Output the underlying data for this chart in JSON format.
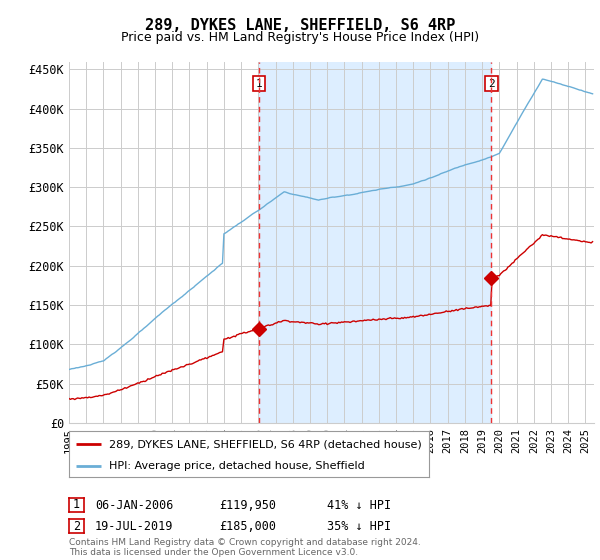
{
  "title": "289, DYKES LANE, SHEFFIELD, S6 4RP",
  "subtitle": "Price paid vs. HM Land Registry's House Price Index (HPI)",
  "title_fontsize": 11,
  "subtitle_fontsize": 9,
  "ylabel_ticks": [
    "£0",
    "£50K",
    "£100K",
    "£150K",
    "£200K",
    "£250K",
    "£300K",
    "£350K",
    "£400K",
    "£450K"
  ],
  "ytick_values": [
    0,
    50000,
    100000,
    150000,
    200000,
    250000,
    300000,
    350000,
    400000,
    450000
  ],
  "ylim": [
    0,
    460000
  ],
  "xlim_start": 1995.0,
  "xlim_end": 2025.5,
  "xtick_years": [
    1995,
    1996,
    1997,
    1998,
    1999,
    2000,
    2001,
    2002,
    2003,
    2004,
    2005,
    2006,
    2007,
    2008,
    2009,
    2010,
    2011,
    2012,
    2013,
    2014,
    2015,
    2016,
    2017,
    2018,
    2019,
    2020,
    2021,
    2022,
    2023,
    2024,
    2025
  ],
  "hpi_color": "#6aaed6",
  "price_color": "#cc0000",
  "vline_color": "#ee3333",
  "fill_color": "#ddeeff",
  "vline1_x": 2006.03,
  "vline2_x": 2019.54,
  "marker1_x": 2006.03,
  "marker1_y": 119950,
  "marker2_x": 2019.54,
  "marker2_y": 185000,
  "legend_line1": "289, DYKES LANE, SHEFFIELD, S6 4RP (detached house)",
  "legend_line2": "HPI: Average price, detached house, Sheffield",
  "annotation1_date": "06-JAN-2006",
  "annotation1_price": "£119,950",
  "annotation1_pct": "41% ↓ HPI",
  "annotation2_date": "19-JUL-2019",
  "annotation2_price": "£185,000",
  "annotation2_pct": "35% ↓ HPI",
  "footer": "Contains HM Land Registry data © Crown copyright and database right 2024.\nThis data is licensed under the Open Government Licence v3.0.",
  "bg_color": "#ffffff",
  "grid_color": "#cccccc"
}
